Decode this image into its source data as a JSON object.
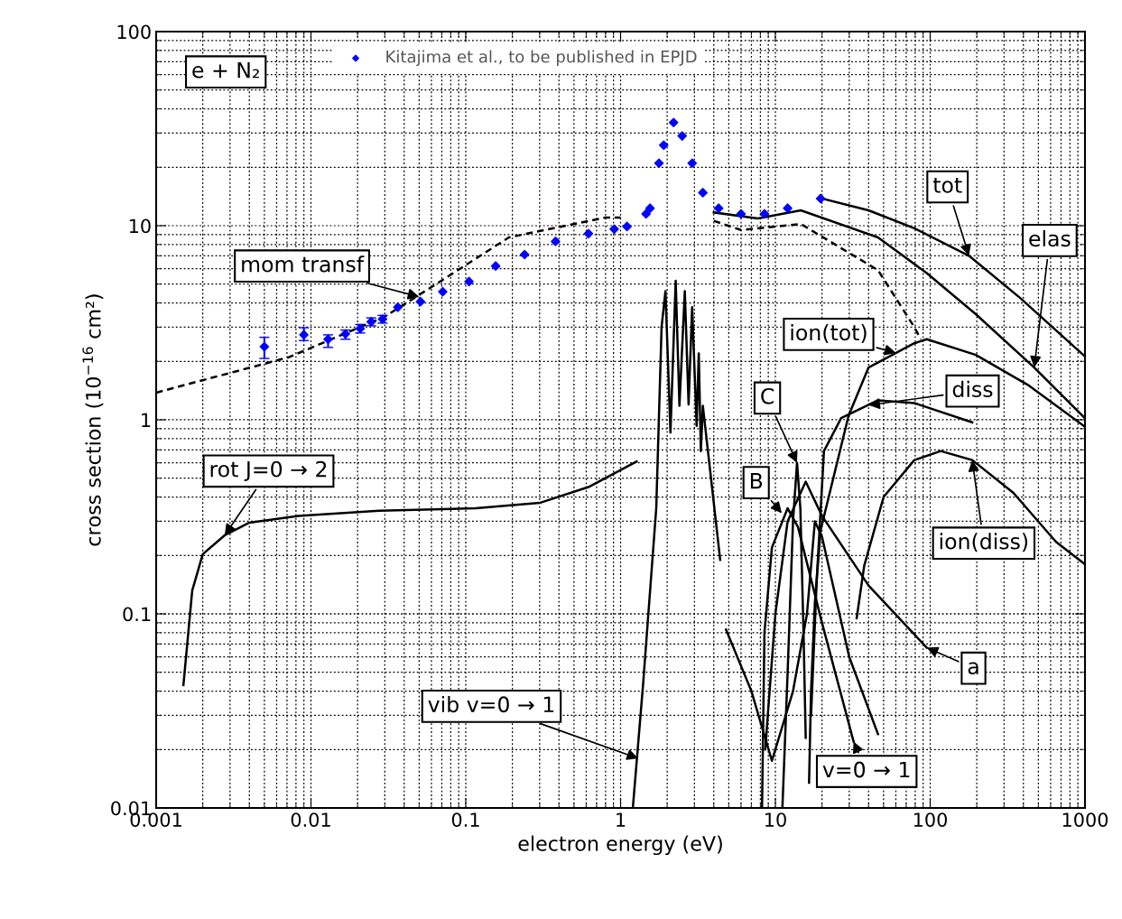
{
  "chart_data": {
    "type": "line",
    "xlabel": "electron energy (eV)",
    "ylabel": "cross section (10$^{−16}$ cm²)",
    "log": "xy",
    "xlim": [
      0.001,
      1000
    ],
    "xticks": [
      0.001,
      0.01,
      0.1,
      1,
      10,
      100,
      1000
    ],
    "ylim": [
      0.01,
      100
    ],
    "yticks": [
      0.01,
      0.1,
      1,
      10,
      100
    ],
    "grid": true,
    "legend": "top",
    "series": [
      {
        "type": "scatter",
        "name": "Kitajima et al., to be published in EPJD",
        "color": "#0000ff",
        "marker": "diamond",
        "x": [
          0.005,
          0.009,
          0.0129,
          0.0167,
          0.0208,
          0.0245,
          0.029,
          0.0364,
          0.051,
          0.071,
          0.105,
          0.156,
          0.24,
          0.38,
          0.62,
          0.91,
          1.1,
          1.46,
          1.55,
          1.77,
          1.9,
          2.2,
          2.5,
          2.9,
          3.4,
          4.3,
          6.0,
          8.5,
          12,
          19.6
        ],
        "values": [
          2.38,
          2.74,
          2.6,
          2.77,
          2.95,
          3.2,
          3.3,
          3.8,
          4.06,
          4.57,
          5.15,
          6.2,
          7.1,
          8.3,
          9.1,
          9.6,
          9.9,
          11.5,
          12.3,
          21,
          26,
          34,
          29,
          21,
          14.8,
          12.3,
          11.5,
          11.5,
          12.3,
          13.8
        ],
        "errors": [
          [
            2.07,
            2.66
          ],
          [
            2.56,
            2.98
          ],
          [
            2.36,
            2.74
          ],
          [
            2.6,
            2.9
          ],
          [
            2.8,
            3.1
          ],
          [
            3.05,
            3.35
          ],
          [
            3.15,
            3.45
          ],
          null,
          null,
          null,
          null,
          null,
          null,
          null,
          null,
          null,
          null,
          null,
          null,
          null,
          null,
          null,
          null,
          null,
          null,
          null,
          null,
          null,
          null,
          null
        ]
      },
      {
        "color": "#000000",
        "line_style": "dashed",
        "x": [
          0.001,
          0.0072,
          0.03,
          0.05,
          0.19,
          0.79,
          1.0
        ],
        "values": [
          1.38,
          2.1,
          3.4,
          4.4,
          8.7,
          11,
          11
        ]
      },
      {
        "color": "#000000",
        "line_style": "dashed",
        "x": [
          4.0,
          6.0,
          14.6,
          46,
          79,
          87
        ],
        "values": [
          10.6,
          9.5,
          10.2,
          5.9,
          3.0,
          2.6
        ]
      },
      {
        "color": "#000000",
        "line_style": "solid",
        "x": [
          20,
          40,
          79,
          178,
          380,
          1000
        ],
        "values": [
          13.8,
          12,
          9.7,
          7.0,
          4.25,
          2.12
        ]
      },
      {
        "color": "#000000",
        "line_style": "solid",
        "x": [
          4.0,
          7.7,
          14.6,
          46,
          95,
          197,
          470,
          1000
        ],
        "values": [
          11.7,
          10.9,
          12.0,
          8.7,
          5.7,
          3.5,
          1.86,
          1.02
        ]
      },
      {
        "color": "#000000",
        "line_style": "solid",
        "x": [
          16.5,
          17,
          18,
          19.6,
          29.7,
          40,
          79,
          95,
          197,
          435,
          1000
        ],
        "values": [
          0.0135,
          0.04,
          0.115,
          0.27,
          1.05,
          1.86,
          2.48,
          2.6,
          2.16,
          1.5,
          0.92
        ]
      },
      {
        "color": "#000000",
        "line_style": "solid",
        "x": [
          17,
          18.5,
          20.6,
          26.6,
          46,
          79,
          187
        ],
        "values": [
          0.03,
          0.15,
          0.69,
          1.02,
          1.26,
          1.22,
          0.97
        ]
      },
      {
        "color": "#000000",
        "line_style": "solid",
        "x": [
          33.5,
          37.5,
          50,
          79,
          117,
          187,
          345,
          650,
          1000
        ],
        "values": [
          0.095,
          0.177,
          0.4,
          0.62,
          0.69,
          0.62,
          0.42,
          0.235,
          0.18
        ]
      },
      {
        "color": "#000000",
        "line_style": "solid",
        "x": [
          0.0015,
          0.00171,
          0.002,
          0.00277,
          0.004,
          0.0083,
          0.0276,
          0.116,
          0.3,
          0.62,
          1.27
        ],
        "values": [
          0.043,
          0.132,
          0.203,
          0.254,
          0.295,
          0.32,
          0.34,
          0.35,
          0.373,
          0.45,
          0.61
        ]
      },
      {
        "color": "#000000",
        "line_style": "solid",
        "x": [
          1.2,
          1.4,
          1.7,
          1.84,
          1.95,
          2.1,
          2.27,
          2.4,
          2.6,
          2.75,
          2.9,
          3.1,
          3.2,
          3.3,
          3.4,
          4.4
        ],
        "values": [
          0.01,
          0.044,
          0.35,
          3.0,
          4.6,
          0.86,
          5.2,
          1.18,
          4.6,
          1.2,
          3.8,
          0.93,
          2.2,
          0.69,
          1.18,
          0.19
        ]
      },
      {
        "color": "#000000",
        "line_style": "solid",
        "x": [
          4.8,
          7,
          9.5,
          13,
          16,
          18,
          20,
          30,
          46
        ],
        "values": [
          0.083,
          0.04,
          0.0175,
          0.04,
          0.1,
          0.3,
          0.25,
          0.06,
          0.024
        ]
      },
      {
        "color": "#000000",
        "line_style": "solid",
        "x": [
          8.2,
          8.5,
          9.5,
          12,
          14,
          20,
          32
        ],
        "values": [
          0.01,
          0.08,
          0.22,
          0.35,
          0.28,
          0.09,
          0.022
        ]
      },
      {
        "color": "#000000",
        "line_style": "solid",
        "x": [
          11.1,
          12,
          13,
          13.8,
          14.5,
          15.2,
          15.7
        ],
        "values": [
          0.01,
          0.05,
          0.3,
          0.6,
          0.35,
          0.08,
          0.023
        ]
      },
      {
        "color": "#000000",
        "line_style": "solid",
        "x": [
          8.6,
          10,
          12,
          15.7,
          20,
          40,
          95
        ],
        "values": [
          0.02,
          0.1,
          0.3,
          0.48,
          0.32,
          0.14,
          0.067
        ]
      }
    ],
    "annotations": [
      "e + N₂",
      {
        "text": "mom transf",
        "x": 0.05,
        "y": 4.3
      },
      {
        "text": "tot",
        "x": 178,
        "y": 7.0
      },
      {
        "text": "elas",
        "x": 470,
        "y": 1.86
      },
      {
        "text": "ion(tot)",
        "x": 60,
        "y": 2.21
      },
      {
        "text": "diss",
        "x": 40,
        "y": 1.19
      },
      {
        "text": "C",
        "x": 13.8,
        "y": 0.6
      },
      {
        "text": "B",
        "x": 11,
        "y": 0.33
      },
      {
        "text": "rot J=0 → 2",
        "x": 0.00277,
        "y": 0.254
      },
      {
        "text": "ion(diss)",
        "x": 187,
        "y": 0.62
      },
      {
        "text": "a",
        "x": 95,
        "y": 0.067
      },
      {
        "text": "vib v=0 → 1",
        "x": 1.3,
        "y": 0.018
      },
      {
        "text": "v=0 → 1",
        "x": 32,
        "y": 0.022
      }
    ]
  }
}
